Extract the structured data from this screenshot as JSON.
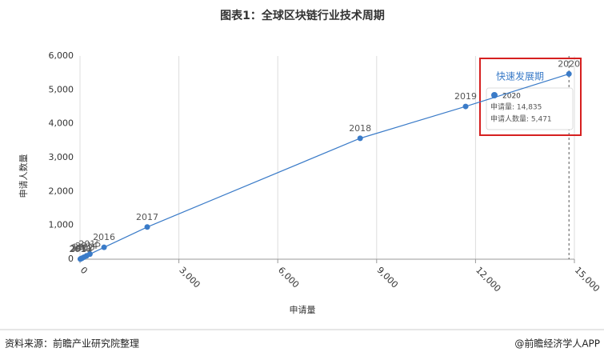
{
  "chart_data": {
    "type": "line",
    "title": "图表1：全球区块链行业技术周期",
    "xlabel": "申请量",
    "ylabel": "申请人数量",
    "point_labels": [
      "2010",
      "2011",
      "2012",
      "2013",
      "2014",
      "2015",
      "2016",
      "2017",
      "2018",
      "2019",
      "2020"
    ],
    "x": [
      10,
      30,
      60,
      120,
      200,
      300,
      730,
      2040,
      8500,
      11700,
      14835
    ],
    "values": [
      5,
      15,
      30,
      60,
      100,
      150,
      350,
      950,
      3570,
      4510,
      5471
    ],
    "color": "#3a7bc8",
    "xlim": [
      0,
      15000
    ],
    "xticks": [
      0,
      {
        "value": 3000,
        "label": "3,000"
      },
      {
        "value": 6000,
        "label": "6,000"
      },
      {
        "value": 9000,
        "label": "9,000"
      },
      {
        "value": 12000,
        "label": "12,000"
      },
      {
        "value": 15000,
        "label": "15,000"
      }
    ],
    "ylim": [
      0,
      6000
    ],
    "yticks": [
      0,
      {
        "value": 1000,
        "label": "1,000"
      },
      {
        "value": 2000,
        "label": "2,000"
      },
      {
        "value": 3000,
        "label": "3,000"
      },
      {
        "value": 4000,
        "label": "4,000"
      },
      {
        "value": 5000,
        "label": "5,000"
      },
      {
        "value": 6000,
        "label": "6,000"
      }
    ],
    "grid": true,
    "annotation": "快速发展期",
    "tooltip": {
      "title": "2020",
      "rows": [
        "申请量: 14,835",
        "申请人数量: 5,471"
      ]
    }
  },
  "footer": {
    "source": "资料来源：前瞻产业研究院整理",
    "brand": "@前瞻经济学人APP"
  }
}
